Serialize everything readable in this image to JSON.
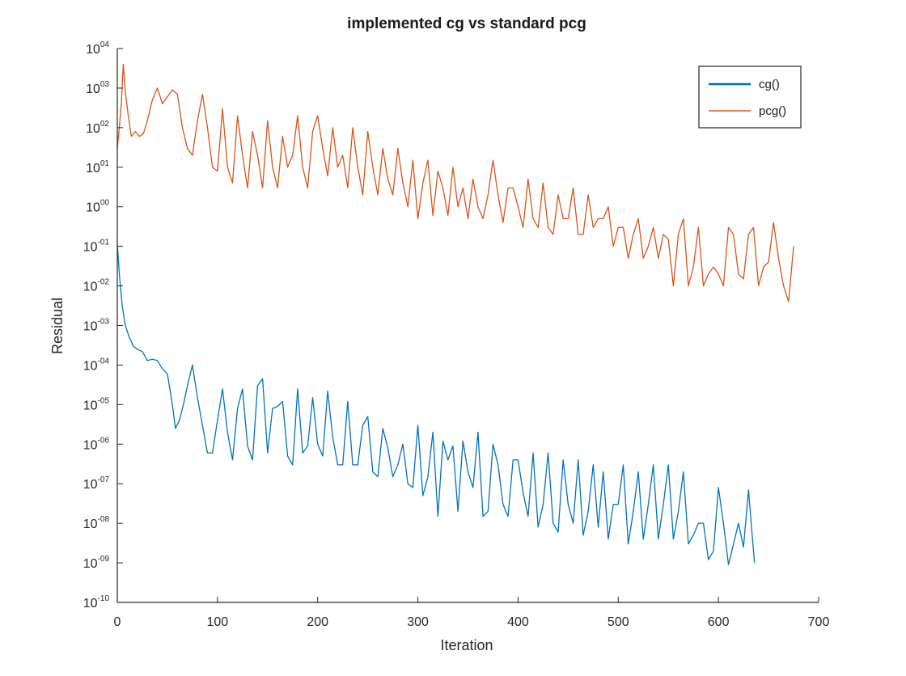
{
  "chart_data": {
    "type": "line",
    "title": "implemented cg vs standard pcg",
    "xlabel": "Iteration",
    "ylabel": "Residual",
    "xlim": [
      0,
      700
    ],
    "ylim_log10": [
      -10,
      4
    ],
    "yscale": "log",
    "x_ticks": [
      0,
      100,
      200,
      300,
      400,
      500,
      600,
      700
    ],
    "x_tick_labels": [
      "0",
      "100",
      "200",
      "300",
      "400",
      "500",
      "600",
      "700"
    ],
    "y_tick_exponents": [
      -10,
      -9,
      -8,
      -7,
      -6,
      -5,
      -4,
      -3,
      -2,
      -1,
      0,
      1,
      2,
      3,
      4
    ],
    "y_tick_labels": [
      "10-10",
      "10-09",
      "10-08",
      "10-07",
      "10-06",
      "10-05",
      "10-04",
      "10-03",
      "10-02",
      "10-01",
      "1000",
      "1001",
      "1002",
      "1003",
      "1004"
    ],
    "y_tick_base": "10",
    "y_tick_exponent_labels": [
      "-10",
      "-09",
      "-08",
      "-07",
      "-06",
      "-05",
      "-04",
      "-03",
      "-02",
      "-01",
      "00",
      "01",
      "02",
      "03",
      "04"
    ],
    "grid": false,
    "legend_position": "top-right",
    "series": [
      {
        "name": "cg()",
        "color": "#0072bd",
        "x": [
          0,
          2,
          5,
          8,
          12,
          16,
          20,
          25,
          30,
          35,
          40,
          45,
          50,
          55,
          58,
          62,
          66,
          70,
          75,
          80,
          85,
          90,
          95,
          100,
          105,
          110,
          115,
          120,
          125,
          130,
          135,
          140,
          145,
          150,
          155,
          160,
          165,
          170,
          175,
          180,
          185,
          190,
          195,
          200,
          205,
          210,
          215,
          220,
          225,
          230,
          235,
          240,
          245,
          250,
          255,
          260,
          265,
          270,
          275,
          280,
          285,
          290,
          295,
          300,
          305,
          310,
          315,
          320,
          325,
          330,
          335,
          340,
          345,
          350,
          355,
          360,
          365,
          370,
          375,
          380,
          385,
          390,
          395,
          400,
          405,
          410,
          415,
          420,
          425,
          430,
          435,
          440,
          445,
          450,
          455,
          460,
          465,
          470,
          475,
          480,
          485,
          490,
          495,
          500,
          505,
          510,
          515,
          520,
          525,
          530,
          535,
          540,
          545,
          550,
          555,
          560,
          565,
          570,
          575,
          580,
          585,
          590,
          595,
          600,
          605,
          610,
          615,
          620,
          625,
          630,
          633,
          636
        ],
        "y": [
          0.12,
          0.02,
          0.003,
          0.001,
          0.0005,
          0.0003,
          0.00025,
          0.00022,
          0.00013,
          0.00014,
          0.00013,
          8e-05,
          6e-05,
          1e-05,
          2.5e-06,
          4e-06,
          1e-05,
          3e-05,
          0.0001,
          1.5e-05,
          3e-06,
          6e-07,
          6e-07,
          4e-06,
          2.5e-05,
          2e-06,
          4e-07,
          8e-06,
          2.5e-05,
          9e-07,
          4e-07,
          3e-05,
          4.5e-05,
          6e-07,
          8e-06,
          9e-06,
          1.2e-05,
          5e-07,
          3e-07,
          2.5e-05,
          6e-07,
          9e-07,
          1.5e-05,
          1e-06,
          5e-07,
          2.2e-05,
          1.5e-06,
          3e-07,
          3e-07,
          1.2e-05,
          3e-07,
          3e-07,
          3e-06,
          5e-06,
          2e-07,
          1.5e-07,
          2.5e-06,
          8e-07,
          1.5e-07,
          3e-07,
          1e-06,
          1e-07,
          8e-08,
          3e-06,
          5e-08,
          1.5e-07,
          2e-06,
          1.5e-08,
          1.2e-06,
          4e-07,
          9e-07,
          2e-08,
          1.2e-06,
          2e-07,
          8e-08,
          2e-06,
          1.5e-08,
          2e-08,
          1e-06,
          3e-07,
          3e-08,
          1.5e-08,
          4e-07,
          4e-07,
          6e-08,
          1.5e-08,
          6e-07,
          8e-09,
          3e-08,
          6e-07,
          1e-08,
          6e-09,
          4e-07,
          3e-08,
          1e-08,
          4e-07,
          5e-09,
          2e-08,
          3e-07,
          8e-09,
          2e-07,
          4e-09,
          3e-08,
          3e-08,
          3e-07,
          3e-09,
          2e-08,
          2e-07,
          4e-09,
          3e-08,
          3e-07,
          4e-09,
          3e-08,
          3e-07,
          4e-09,
          2e-08,
          2e-07,
          3e-09,
          5e-09,
          1e-08,
          1e-08,
          1.2e-09,
          2e-09,
          8e-08,
          1e-08,
          9e-10,
          3e-09,
          1e-08,
          2.5e-09,
          7e-08,
          8e-09,
          1e-09
        ]
      },
      {
        "name": "pcg()",
        "color": "#d95319",
        "x": [
          0,
          2,
          4,
          6,
          8,
          11,
          14,
          18,
          22,
          26,
          30,
          35,
          40,
          45,
          50,
          55,
          60,
          65,
          70,
          75,
          80,
          85,
          90,
          95,
          100,
          105,
          110,
          115,
          120,
          125,
          130,
          135,
          140,
          145,
          150,
          155,
          160,
          165,
          170,
          175,
          180,
          185,
          190,
          195,
          200,
          205,
          210,
          215,
          220,
          225,
          230,
          235,
          240,
          245,
          250,
          255,
          260,
          265,
          270,
          275,
          280,
          285,
          290,
          295,
          300,
          305,
          310,
          315,
          320,
          325,
          330,
          335,
          340,
          345,
          350,
          355,
          360,
          365,
          370,
          375,
          380,
          385,
          390,
          395,
          400,
          405,
          410,
          415,
          420,
          425,
          430,
          435,
          440,
          445,
          450,
          455,
          460,
          465,
          470,
          475,
          480,
          485,
          490,
          495,
          500,
          505,
          510,
          515,
          520,
          525,
          530,
          535,
          540,
          545,
          550,
          555,
          560,
          565,
          570,
          575,
          580,
          585,
          590,
          595,
          600,
          605,
          610,
          615,
          620,
          625,
          630,
          635,
          640,
          645,
          650,
          655,
          660,
          665,
          670,
          675
        ],
        "y": [
          30,
          100,
          400,
          4000,
          800,
          200,
          60,
          80,
          60,
          70,
          150,
          500,
          1000,
          400,
          600,
          900,
          700,
          100,
          30,
          20,
          150,
          700,
          100,
          10,
          8,
          300,
          10,
          4,
          200,
          20,
          3,
          80,
          20,
          3,
          150,
          10,
          3,
          60,
          10,
          20,
          200,
          10,
          3,
          80,
          200,
          30,
          6,
          100,
          10,
          20,
          3,
          100,
          10,
          2,
          80,
          10,
          2,
          30,
          5,
          2,
          30,
          4,
          1,
          15,
          0.5,
          4,
          15,
          0.6,
          8,
          3,
          0.6,
          10,
          1,
          3,
          0.5,
          5,
          1,
          0.5,
          2,
          15,
          2,
          0.4,
          3,
          3,
          1,
          0.3,
          5,
          0.5,
          0.3,
          4,
          0.3,
          0.2,
          2,
          0.5,
          0.5,
          3,
          0.2,
          0.2,
          2,
          0.3,
          0.5,
          0.5,
          1,
          0.1,
          0.3,
          0.3,
          0.05,
          0.2,
          0.5,
          0.05,
          0.1,
          0.3,
          0.05,
          0.2,
          0.15,
          0.01,
          0.2,
          0.5,
          0.01,
          0.03,
          0.3,
          0.01,
          0.02,
          0.03,
          0.02,
          0.01,
          0.3,
          0.2,
          0.02,
          0.015,
          0.2,
          0.3,
          0.01,
          0.03,
          0.04,
          0.4,
          0.05,
          0.01,
          0.004,
          0.1
        ]
      }
    ]
  }
}
